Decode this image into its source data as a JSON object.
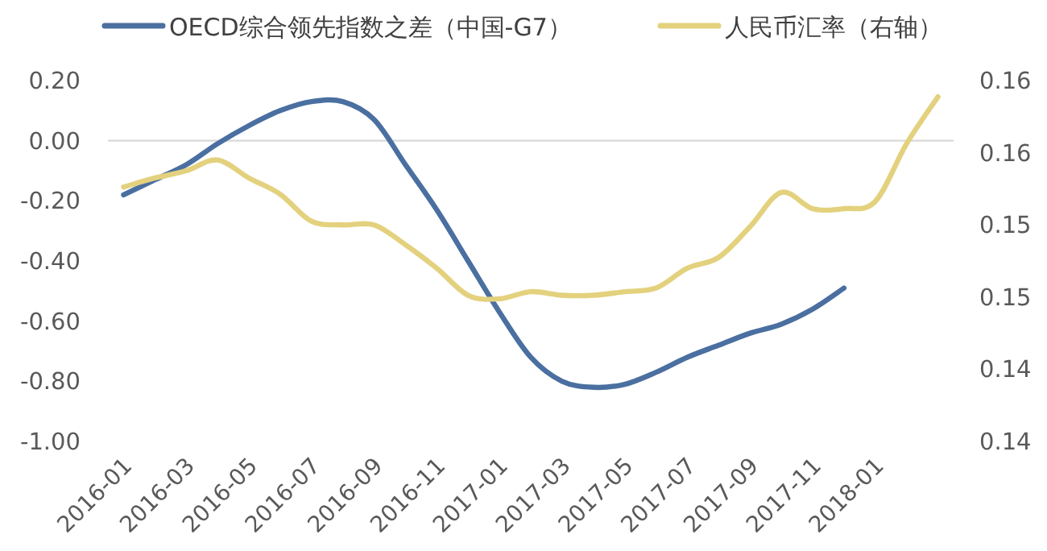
{
  "chart_data": {
    "type": "line",
    "categories": [
      "2016-01",
      null,
      "2016-03",
      null,
      "2016-05",
      null,
      "2016-07",
      null,
      "2016-09",
      null,
      "2016-11",
      null,
      "2017-01",
      null,
      "2017-03",
      null,
      "2017-05",
      null,
      "2017-07",
      null,
      "2017-09",
      null,
      "2017-11",
      null,
      "2018-01",
      null,
      null
    ],
    "series": [
      {
        "name": "OECD综合领先指数之差（中国-G7）",
        "color": "#4a6fa0",
        "values": [
          -0.18,
          -0.13,
          -0.08,
          -0.01,
          0.05,
          0.1,
          0.13,
          0.13,
          0.07,
          -0.08,
          -0.23,
          -0.4,
          -0.57,
          -0.72,
          -0.8,
          -0.82,
          -0.81,
          -0.77,
          -0.72,
          -0.68,
          -0.64,
          -0.61,
          -0.56,
          -0.49,
          null,
          null,
          null
        ]
      },
      {
        "name": "人民币汇率（右轴）",
        "color": "#e3d17e",
        "axis": "y2",
        "values": [
          0.1541,
          0.1546,
          0.155,
          0.1556,
          0.1546,
          0.1537,
          0.1522,
          0.152,
          0.152,
          0.1509,
          0.1496,
          0.1481,
          0.1479,
          0.1483,
          0.1481,
          0.1481,
          0.1483,
          0.1485,
          0.1496,
          0.1502,
          0.1519,
          0.1538,
          0.1529,
          0.1529,
          0.1533,
          0.1565,
          0.1591
        ]
      }
    ],
    "ylim": [
      -1.0,
      0.2
    ],
    "yticks": [
      {
        "value": 0.2,
        "label": "0.20"
      },
      {
        "value": 0.0,
        "label": "0.00"
      },
      {
        "value": -0.2,
        "label": "-0.20"
      },
      {
        "value": -0.4,
        "label": "-0.40"
      },
      {
        "value": -0.6,
        "label": "-0.60"
      },
      {
        "value": -0.8,
        "label": "-0.80"
      },
      {
        "value": -1.0,
        "label": "-1.00"
      }
    ],
    "y2lim": [
      0.14,
      0.16
    ],
    "y2ticks": [
      {
        "value": 0.16,
        "label": "0.16"
      },
      {
        "value": 0.156,
        "label": "0.16"
      },
      {
        "value": 0.152,
        "label": "0.15"
      },
      {
        "value": 0.148,
        "label": "0.15"
      },
      {
        "value": 0.144,
        "label": "0.14"
      },
      {
        "value": 0.14,
        "label": "0.14"
      }
    ],
    "ref_lines": [
      {
        "axis": "y",
        "value": 0,
        "color": "#d9d9d9"
      }
    ],
    "legend": "top"
  }
}
